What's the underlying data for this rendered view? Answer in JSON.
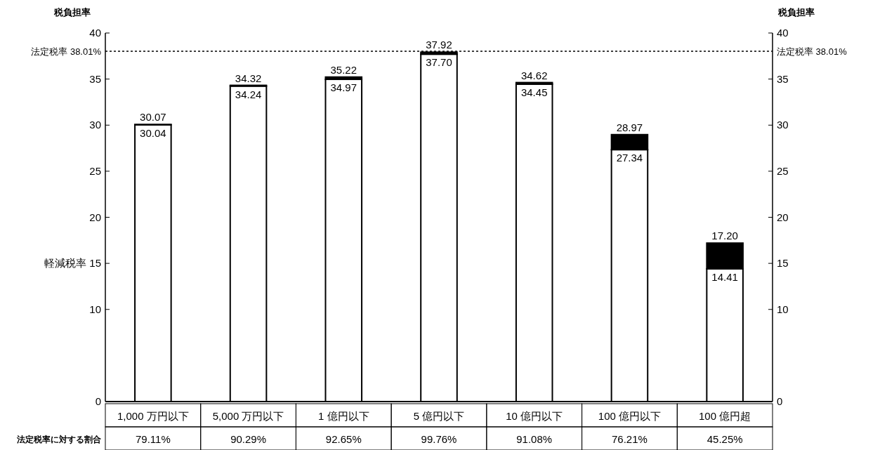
{
  "chart_data": {
    "type": "bar",
    "stacked": true,
    "ylabel": "税負担率",
    "y2label": "税負担率",
    "categories": [
      "1,000 万円以下",
      "5,000 万円以下",
      "1 億円以下",
      "5 億円以下",
      "10 億円以下",
      "100 億円以下",
      "100 億円超"
    ],
    "series": [
      {
        "color": "#ffffff",
        "values": [
          30.04,
          34.24,
          34.97,
          37.7,
          34.45,
          27.34,
          14.41
        ],
        "value_labels": [
          "30.04",
          "34.24",
          "34.97",
          "37.70",
          "34.45",
          "27.34",
          "14.41"
        ]
      },
      {
        "color": "#000000",
        "values": [
          0.03,
          0.08,
          0.25,
          0.22,
          0.17,
          1.63,
          2.79
        ]
      }
    ],
    "totals": [
      "30.07",
      "34.32",
      "35.22",
      "37.92",
      "34.62",
      "28.97",
      "17.20"
    ],
    "ylim": [
      0,
      40
    ],
    "yticks": [
      0,
      10,
      {
        "value": 15,
        "label": "軽減税率 15"
      },
      20,
      25,
      30,
      35,
      40
    ],
    "y2lim": [
      0,
      40
    ],
    "y2ticks": [
      0,
      10,
      15,
      20,
      25,
      30,
      35,
      40
    ],
    "ref_lines": [
      {
        "axis": "y",
        "value": 38.01,
        "label": "法定税率 38.01%",
        "line_style": "dotted",
        "color": "#000000"
      }
    ],
    "annotations": [
      "法定税率に対する割合",
      "79.11%",
      "90.29%",
      "92.65%",
      "99.76%",
      "91.08%",
      "76.21%",
      "45.25%"
    ],
    "grid": false
  }
}
